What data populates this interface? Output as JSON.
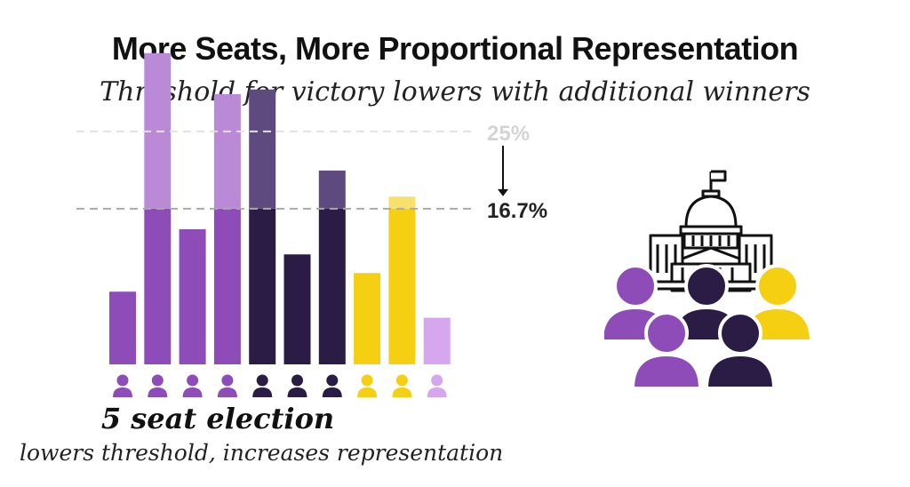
{
  "header": {
    "title": "More Seats, More Proportional Representation",
    "subtitle": "Threshold for victory lowers with additional winners"
  },
  "caption": {
    "main": "5 seat election",
    "sub": "lowers threshold, increases representation"
  },
  "icons": {
    "voter_icon": "person-icon",
    "legislature_icon": "capitol-building-icon"
  },
  "colors": {
    "purple": "#8e4cb8",
    "purple_light": "#bb8ad6",
    "dark": "#2a1c45",
    "dark_light": "#5e4a7e",
    "yellow": "#f4cf12",
    "yellow_light": "#f7e06c",
    "lavender": "#d6a6ee",
    "threshold_line": "#aaaaaa",
    "threshold_old_text": "#d4d4d4",
    "threshold_new_text": "#222222"
  },
  "chart_data": {
    "type": "bar",
    "thresholds": [
      {
        "label": "25%",
        "value": 25
      },
      {
        "label": "16.7%",
        "value": 16.7
      }
    ],
    "bars": [
      {
        "value": 7.8,
        "group": "purple"
      },
      {
        "value": 33.4,
        "group": "purple"
      },
      {
        "value": 14.5,
        "group": "purple"
      },
      {
        "value": 29.0,
        "group": "purple"
      },
      {
        "value": 29.5,
        "group": "dark"
      },
      {
        "value": 11.8,
        "group": "dark"
      },
      {
        "value": 20.8,
        "group": "dark"
      },
      {
        "value": 9.8,
        "group": "yellow"
      },
      {
        "value": 18.0,
        "group": "yellow"
      },
      {
        "value": 5.0,
        "group": "lavender"
      }
    ],
    "ylim": [
      0,
      35
    ],
    "grid": false
  }
}
